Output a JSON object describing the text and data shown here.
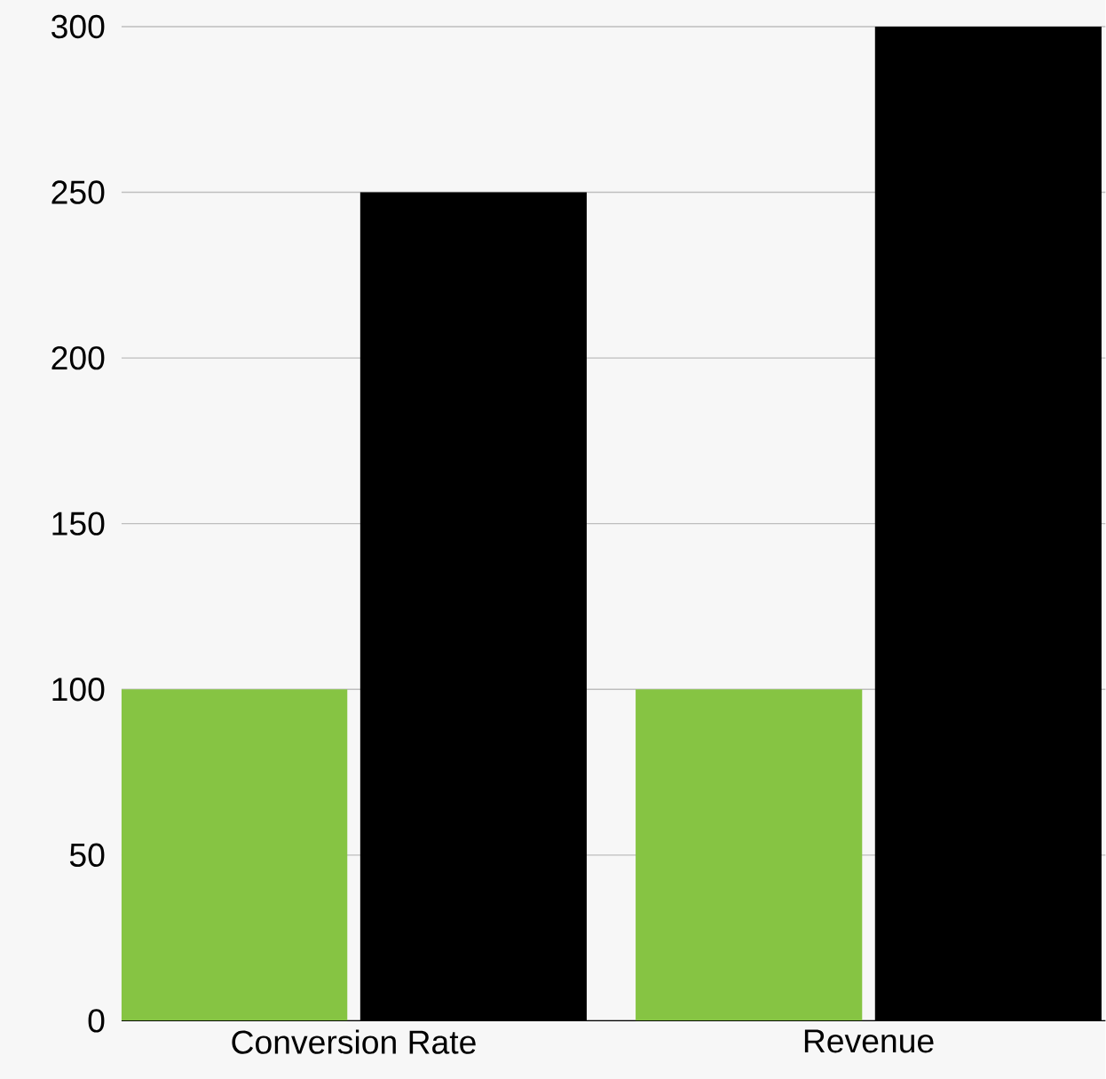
{
  "chart_data": {
    "type": "bar",
    "categories": [
      "Conversion Rate",
      "Revenue"
    ],
    "series": [
      {
        "color": "#86c443",
        "values": [
          100,
          100
        ]
      },
      {
        "color": "#000000",
        "values": [
          250,
          300
        ]
      }
    ],
    "ylim": [
      0,
      300
    ],
    "yticks": [
      0,
      50,
      100,
      150,
      200,
      250,
      300
    ],
    "grid": "y"
  }
}
